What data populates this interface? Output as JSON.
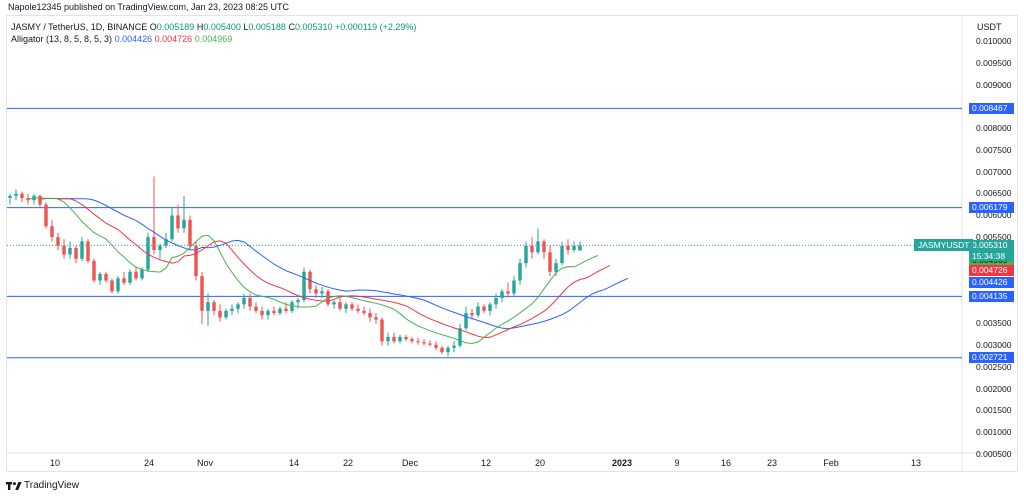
{
  "header": {
    "title": "Napole12345 published on TradingView.com, Jan 23, 2023 08:25 UTC"
  },
  "legend": {
    "symbol": "JASMY / TetherUS, 1D, BINANCE",
    "o_label": "O",
    "o_value": "0.005189",
    "h_label": "H",
    "h_value": "0.005400",
    "l_label": "L",
    "l_value": "0.005188",
    "c_label": "C",
    "c_value": "0.005310",
    "change": "+0.000119 (+2.29%)",
    "indicator": "Alligator (13, 8, 5, 8, 5, 3)",
    "jaw": "0.004426",
    "teeth": "0.004726",
    "lips": "0.004969"
  },
  "axis": {
    "unit": "USDT",
    "y_ticks": [
      "0.010000",
      "0.009500",
      "0.009000",
      "0.008000",
      "0.007500",
      "0.007000",
      "0.006500",
      "0.006000",
      "0.005500",
      "0.004500",
      "0.003500",
      "0.003000",
      "0.002500",
      "0.002000",
      "0.001500",
      "0.001000",
      "0.000500"
    ],
    "x_ticks": [
      {
        "label": "10",
        "bold": false
      },
      {
        "label": "24",
        "bold": false
      },
      {
        "label": "Nov",
        "bold": false
      },
      {
        "label": "14",
        "bold": false
      },
      {
        "label": "22",
        "bold": false
      },
      {
        "label": "Dec",
        "bold": false
      },
      {
        "label": "12",
        "bold": false
      },
      {
        "label": "20",
        "bold": false
      },
      {
        "label": "2023",
        "bold": true
      },
      {
        "label": "9",
        "bold": false
      },
      {
        "label": "16",
        "bold": false
      },
      {
        "label": "23",
        "bold": false
      },
      {
        "label": "Feb",
        "bold": false
      },
      {
        "label": "13",
        "bold": false
      }
    ]
  },
  "levels": [
    "0.008467",
    "0.006179",
    "0.004135",
    "0.002721"
  ],
  "price_tags": {
    "symbol": "JASMYUSDT",
    "last": "0.005310",
    "countdown": "15:34:38",
    "lips": "0.004969",
    "teeth": "0.004726",
    "jaw": "0.004426"
  },
  "colors": {
    "up": "#26a69a",
    "down": "#ef5350",
    "jaw": "#2962ff",
    "teeth": "#f23645",
    "lips": "#4caf50",
    "level": "#2962ff"
  },
  "footer": {
    "logo": "tradingview-logo-icon",
    "text": "TradingView"
  },
  "chart_data": {
    "type": "candlestick",
    "y_range": [
      0.0001,
      0.0103
    ],
    "y_unit": "USDT",
    "candles": [
      [
        0.0064,
        0.0065,
        0.00625,
        0.00645
      ],
      [
        0.00645,
        0.0066,
        0.00635,
        0.0065
      ],
      [
        0.0065,
        0.00655,
        0.0063,
        0.0064
      ],
      [
        0.0064,
        0.0065,
        0.00625,
        0.00635
      ],
      [
        0.00635,
        0.0065,
        0.00625,
        0.00645
      ],
      [
        0.00645,
        0.00648,
        0.0062,
        0.00625
      ],
      [
        0.00625,
        0.0063,
        0.0057,
        0.00575
      ],
      [
        0.00575,
        0.0059,
        0.0054,
        0.0055
      ],
      [
        0.0055,
        0.0056,
        0.0052,
        0.0053
      ],
      [
        0.0053,
        0.00545,
        0.005,
        0.0051
      ],
      [
        0.0051,
        0.0054,
        0.005,
        0.00525
      ],
      [
        0.00525,
        0.0053,
        0.0049,
        0.005
      ],
      [
        0.005,
        0.0055,
        0.00495,
        0.0054
      ],
      [
        0.0054,
        0.00545,
        0.0049,
        0.00495
      ],
      [
        0.00495,
        0.005,
        0.00445,
        0.0045
      ],
      [
        0.0045,
        0.0047,
        0.0044,
        0.00465
      ],
      [
        0.00465,
        0.0047,
        0.00445,
        0.0045
      ],
      [
        0.0045,
        0.00455,
        0.0042,
        0.00425
      ],
      [
        0.00425,
        0.0046,
        0.0042,
        0.00455
      ],
      [
        0.00455,
        0.0047,
        0.0044,
        0.00445
      ],
      [
        0.00445,
        0.00475,
        0.0044,
        0.0047
      ],
      [
        0.0047,
        0.0048,
        0.0045,
        0.00455
      ],
      [
        0.00455,
        0.0048,
        0.0045,
        0.00475
      ],
      [
        0.00475,
        0.0056,
        0.0047,
        0.0055
      ],
      [
        0.0055,
        0.0069,
        0.0051,
        0.0052
      ],
      [
        0.0052,
        0.00535,
        0.005,
        0.0053
      ],
      [
        0.0053,
        0.0056,
        0.00525,
        0.00545
      ],
      [
        0.00545,
        0.0062,
        0.0054,
        0.006
      ],
      [
        0.006,
        0.00625,
        0.0056,
        0.0057
      ],
      [
        0.0057,
        0.00645,
        0.0056,
        0.0059
      ],
      [
        0.0059,
        0.006,
        0.0052,
        0.0053
      ],
      [
        0.0053,
        0.0054,
        0.0045,
        0.0046
      ],
      [
        0.0046,
        0.0047,
        0.0035,
        0.0038
      ],
      [
        0.0038,
        0.0042,
        0.00345,
        0.004
      ],
      [
        0.004,
        0.00405,
        0.0037,
        0.0038
      ],
      [
        0.0038,
        0.00395,
        0.00355,
        0.00365
      ],
      [
        0.00365,
        0.00385,
        0.0036,
        0.0038
      ],
      [
        0.0038,
        0.00395,
        0.0037,
        0.00385
      ],
      [
        0.00385,
        0.004,
        0.00375,
        0.00395
      ],
      [
        0.00395,
        0.0042,
        0.00385,
        0.0041
      ],
      [
        0.0041,
        0.0042,
        0.0038,
        0.0039
      ],
      [
        0.0039,
        0.004,
        0.00375,
        0.0038
      ],
      [
        0.0038,
        0.0039,
        0.0036,
        0.0037
      ],
      [
        0.0037,
        0.00385,
        0.0036,
        0.0038
      ],
      [
        0.0038,
        0.0039,
        0.0037,
        0.00375
      ],
      [
        0.00375,
        0.0039,
        0.0037,
        0.00385
      ],
      [
        0.00385,
        0.004,
        0.00375,
        0.0038
      ],
      [
        0.0038,
        0.00405,
        0.00375,
        0.004
      ],
      [
        0.004,
        0.0041,
        0.00385,
        0.00405
      ],
      [
        0.00405,
        0.0048,
        0.004,
        0.0047
      ],
      [
        0.0047,
        0.00475,
        0.0042,
        0.0043
      ],
      [
        0.0043,
        0.0044,
        0.0041,
        0.0042
      ],
      [
        0.0042,
        0.00435,
        0.0041,
        0.00425
      ],
      [
        0.00425,
        0.0043,
        0.0039,
        0.00395
      ],
      [
        0.00395,
        0.00405,
        0.00385,
        0.004
      ],
      [
        0.004,
        0.0041,
        0.0038,
        0.00385
      ],
      [
        0.00385,
        0.004,
        0.00375,
        0.00395
      ],
      [
        0.00395,
        0.004,
        0.0038,
        0.00385
      ],
      [
        0.00385,
        0.00395,
        0.00375,
        0.0038
      ],
      [
        0.0038,
        0.0039,
        0.0037,
        0.00375
      ],
      [
        0.00375,
        0.00385,
        0.00355,
        0.00365
      ],
      [
        0.00365,
        0.00375,
        0.0035,
        0.0036
      ],
      [
        0.0036,
        0.00365,
        0.003,
        0.0031
      ],
      [
        0.0031,
        0.0033,
        0.003,
        0.0032
      ],
      [
        0.0032,
        0.0033,
        0.00305,
        0.0031
      ],
      [
        0.0031,
        0.00325,
        0.00305,
        0.0032
      ],
      [
        0.0032,
        0.00325,
        0.0031,
        0.00315
      ],
      [
        0.00315,
        0.0032,
        0.00305,
        0.0031
      ],
      [
        0.0031,
        0.00318,
        0.00302,
        0.00308
      ],
      [
        0.00308,
        0.00315,
        0.003,
        0.00305
      ],
      [
        0.00305,
        0.00312,
        0.00298,
        0.00302
      ],
      [
        0.00302,
        0.0031,
        0.0029,
        0.00295
      ],
      [
        0.00295,
        0.003,
        0.0028,
        0.00285
      ],
      [
        0.00285,
        0.003,
        0.00275,
        0.00295
      ],
      [
        0.00295,
        0.0031,
        0.00285,
        0.003
      ],
      [
        0.003,
        0.0035,
        0.00295,
        0.0034
      ],
      [
        0.0034,
        0.0039,
        0.00335,
        0.00375
      ],
      [
        0.00375,
        0.00385,
        0.0036,
        0.0037
      ],
      [
        0.0037,
        0.004,
        0.00365,
        0.0039
      ],
      [
        0.0039,
        0.00395,
        0.00375,
        0.0038
      ],
      [
        0.0038,
        0.004,
        0.0037,
        0.00395
      ],
      [
        0.00395,
        0.0042,
        0.00385,
        0.0041
      ],
      [
        0.0041,
        0.0043,
        0.004,
        0.00425
      ],
      [
        0.00425,
        0.00445,
        0.0041,
        0.0042
      ],
      [
        0.0042,
        0.0046,
        0.00415,
        0.0045
      ],
      [
        0.0045,
        0.005,
        0.0044,
        0.0049
      ],
      [
        0.0049,
        0.0054,
        0.0048,
        0.0053
      ],
      [
        0.0053,
        0.0055,
        0.005,
        0.00515
      ],
      [
        0.00515,
        0.0057,
        0.0051,
        0.0054
      ],
      [
        0.0054,
        0.00545,
        0.005,
        0.00515
      ],
      [
        0.00515,
        0.0053,
        0.0046,
        0.0047
      ],
      [
        0.0047,
        0.005,
        0.0046,
        0.0049
      ],
      [
        0.0049,
        0.0054,
        0.00485,
        0.0053
      ],
      [
        0.0053,
        0.00545,
        0.0051,
        0.0052
      ],
      [
        0.0052,
        0.0054,
        0.00515,
        0.0053
      ],
      [
        0.00519,
        0.0054,
        0.00519,
        0.00531
      ]
    ]
  }
}
